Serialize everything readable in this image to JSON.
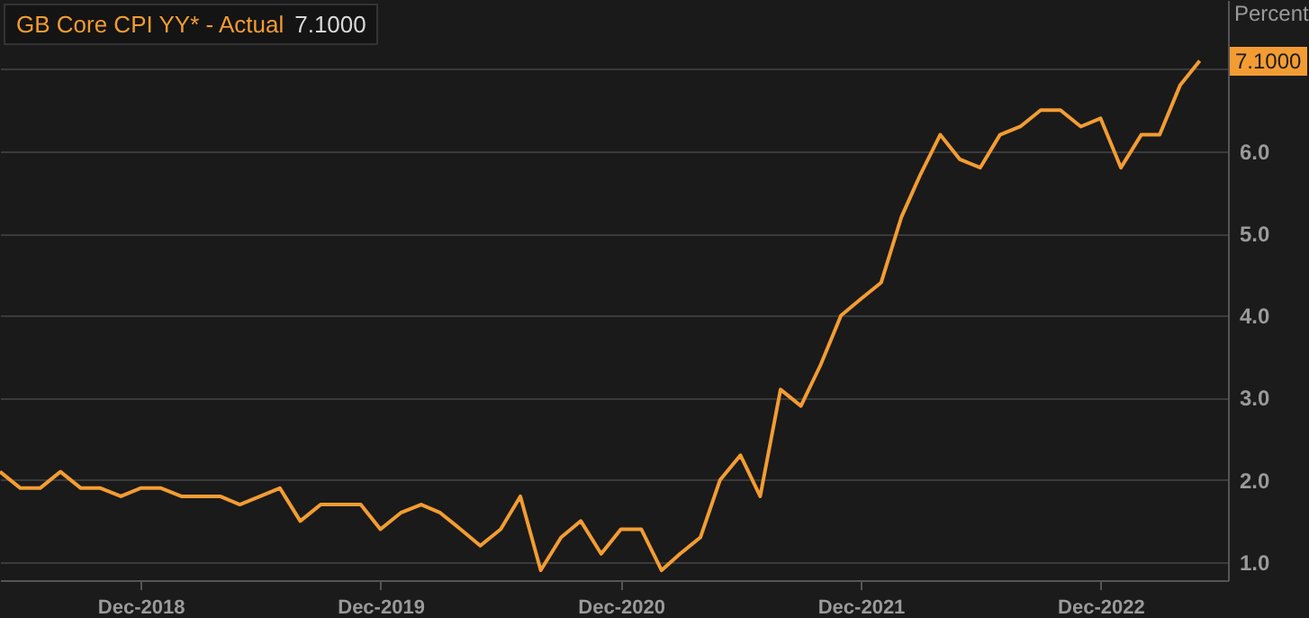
{
  "chart_data": {
    "type": "line",
    "title": "GB Core CPI YY* - Actual",
    "subtitle": "7.1000",
    "ylabel": "Percent",
    "annotations": [
      {
        "text": "7.1000",
        "x": "2023-05",
        "y": 7.1
      }
    ],
    "x": [
      "2018-05",
      "2018-06",
      "2018-07",
      "2018-08",
      "2018-09",
      "2018-10",
      "2018-11",
      "2018-12",
      "2019-01",
      "2019-02",
      "2019-03",
      "2019-04",
      "2019-05",
      "2019-06",
      "2019-07",
      "2019-08",
      "2019-09",
      "2019-10",
      "2019-11",
      "2019-12",
      "2020-01",
      "2020-02",
      "2020-03",
      "2020-04",
      "2020-05",
      "2020-06",
      "2020-07",
      "2020-08",
      "2020-09",
      "2020-10",
      "2020-11",
      "2020-12",
      "2021-01",
      "2021-02",
      "2021-03",
      "2021-04",
      "2021-05",
      "2021-06",
      "2021-07",
      "2021-08",
      "2021-09",
      "2021-10",
      "2021-11",
      "2021-12",
      "2022-01",
      "2022-02",
      "2022-03",
      "2022-04",
      "2022-05",
      "2022-06",
      "2022-07",
      "2022-08",
      "2022-09",
      "2022-10",
      "2022-11",
      "2022-12",
      "2023-01",
      "2023-02",
      "2023-03",
      "2023-04",
      "2023-05"
    ],
    "series": [
      {
        "color": "#f39c33",
        "values": [
          2.1,
          1.9,
          1.9,
          2.1,
          1.9,
          1.9,
          1.8,
          1.9,
          1.9,
          1.8,
          1.8,
          1.8,
          1.7,
          1.8,
          1.9,
          1.5,
          1.7,
          1.7,
          1.7,
          1.4,
          1.6,
          1.7,
          1.6,
          1.4,
          1.2,
          1.4,
          1.8,
          0.9,
          1.3,
          1.5,
          1.1,
          1.4,
          1.4,
          0.9,
          1.1,
          1.3,
          2.0,
          2.3,
          1.8,
          3.1,
          2.9,
          3.4,
          4.0,
          4.2,
          4.4,
          5.2,
          5.7,
          6.2,
          5.9,
          5.8,
          6.2,
          6.3,
          6.5,
          6.5,
          6.3,
          6.4,
          5.8,
          6.2,
          6.2,
          6.8,
          7.1
        ]
      }
    ],
    "xlim": [
      "2018-05",
      "2023-06-13"
    ],
    "xticks": [
      {
        "value": "2018-12",
        "label": "Dec-2018"
      },
      {
        "value": "2019-12",
        "label": "Dec-2019"
      },
      {
        "value": "2020-12",
        "label": "Dec-2020"
      },
      {
        "value": "2021-12",
        "label": "Dec-2021"
      },
      {
        "value": "2022-12",
        "label": "Dec-2022"
      }
    ],
    "ylim": [
      0.78,
      7.84
    ],
    "yticks": [
      {
        "value": 1,
        "label": "1.0"
      },
      {
        "value": 2,
        "label": "2.0"
      },
      {
        "value": 3,
        "label": "3.0"
      },
      {
        "value": 4,
        "label": "4.0"
      },
      {
        "value": 5,
        "label": "5.0"
      },
      {
        "value": 6,
        "label": "6.0"
      },
      {
        "value": 7,
        "label": null
      }
    ],
    "grid": "y"
  }
}
